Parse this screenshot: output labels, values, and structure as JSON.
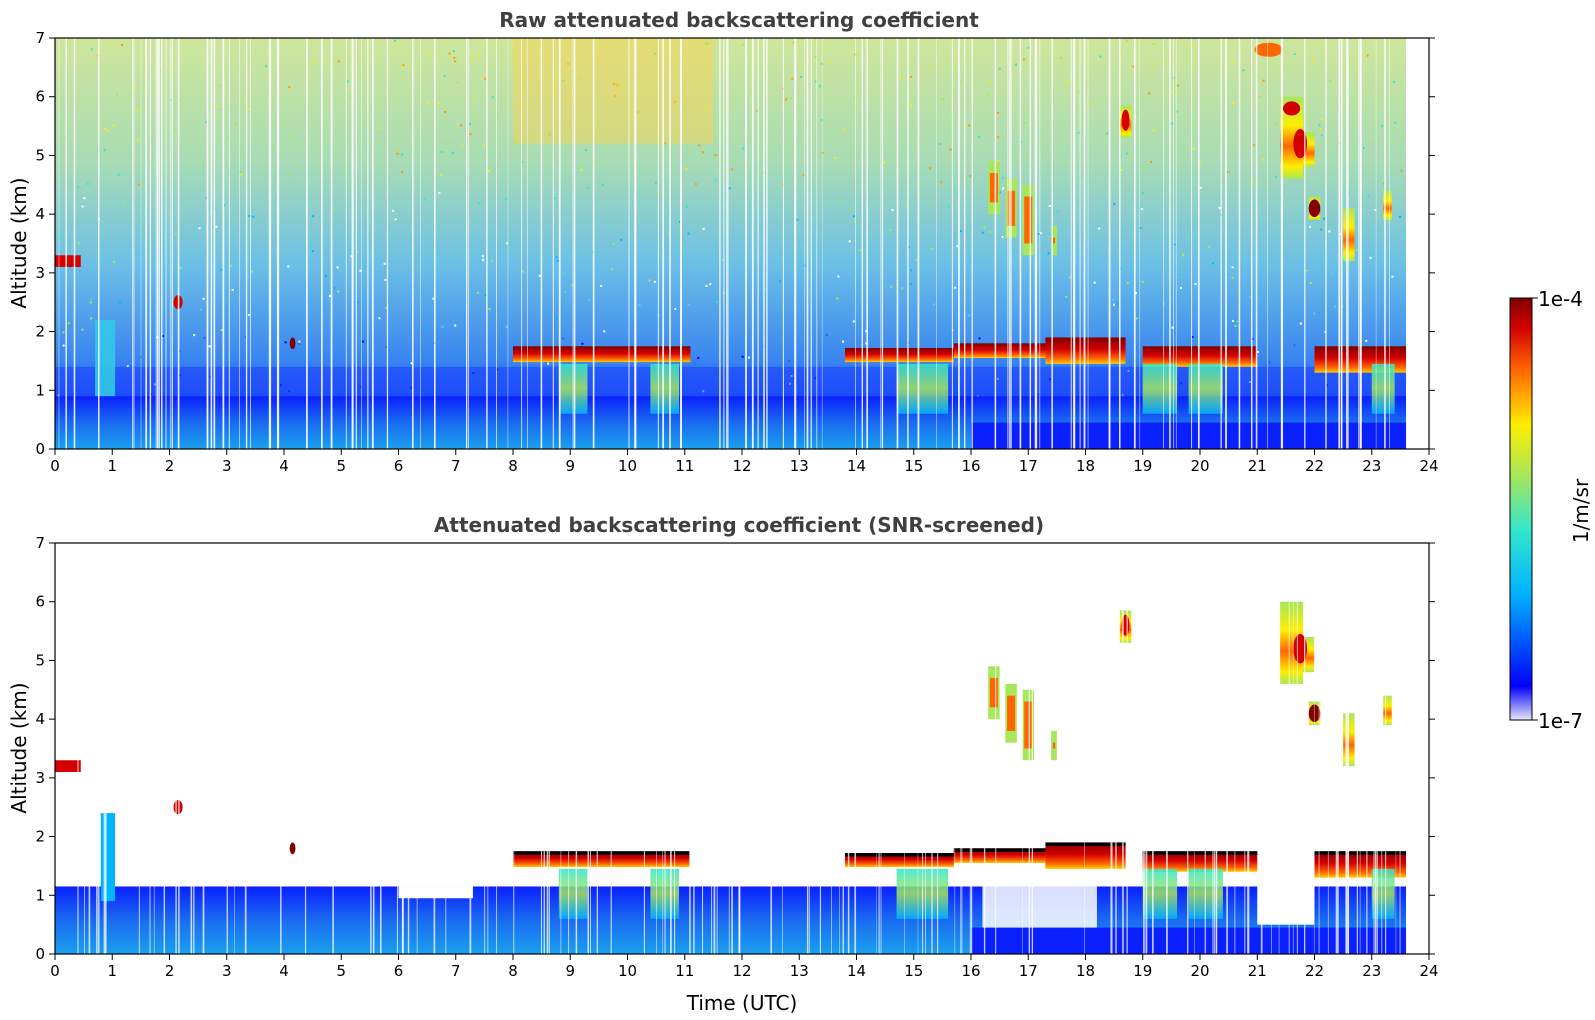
{
  "chart_data": [
    {
      "type": "heatmap",
      "title": "Raw attenuated backscattering coefficient",
      "xlabel": "",
      "ylabel": "Altitude (km)",
      "xlim": [
        0,
        24
      ],
      "ylim": [
        0,
        7
      ],
      "x_ticks": [
        "0",
        "1",
        "2",
        "3",
        "4",
        "5",
        "6",
        "7",
        "8",
        "9",
        "10",
        "11",
        "12",
        "13",
        "14",
        "15",
        "16",
        "17",
        "18",
        "19",
        "20",
        "21",
        "22",
        "23",
        "24"
      ],
      "y_ticks": [
        "0",
        "1",
        "2",
        "3",
        "4",
        "5",
        "6",
        "7"
      ],
      "data_end_time": 23.6,
      "features": [
        {
          "kind": "boundary_layer_aerosol",
          "t_start": 0,
          "t_end": 23.6,
          "alt_top": 0.9
        },
        {
          "kind": "cloud",
          "t_start": 8.0,
          "t_end": 11.1,
          "alt": 1.6
        },
        {
          "kind": "cloud",
          "t_start": 13.8,
          "t_end": 17.3,
          "alt": 1.65
        },
        {
          "kind": "cloud",
          "t_start": 17.3,
          "t_end": 18.7,
          "alt": 1.65
        },
        {
          "kind": "cloud",
          "t_start": 19.0,
          "t_end": 21.0,
          "alt": 1.55
        },
        {
          "kind": "cloud",
          "t_start": 22.0,
          "t_end": 23.6,
          "alt": 1.5
        },
        {
          "kind": "virga",
          "t_start": 16.3,
          "t_end": 17.5,
          "alt_range": [
            3.3,
            4.9
          ]
        },
        {
          "kind": "cirrus",
          "t_start": 21.2,
          "t_end": 23.3,
          "alt_range": [
            3.2,
            6.8
          ]
        },
        {
          "kind": "cloud",
          "t_start": 18.6,
          "t_end": 18.8,
          "alt_range": [
            5.3,
            5.8
          ]
        },
        {
          "kind": "cloud",
          "t_start": 0.0,
          "t_end": 0.4,
          "alt": 3.2
        }
      ]
    },
    {
      "type": "heatmap",
      "title": "Attenuated backscattering coefficient (SNR-screened)",
      "xlabel": "Time (UTC)",
      "ylabel": "Altitude (km)",
      "xlim": [
        0,
        24
      ],
      "ylim": [
        0,
        7
      ],
      "x_ticks": [
        "0",
        "1",
        "2",
        "3",
        "4",
        "5",
        "6",
        "7",
        "8",
        "9",
        "10",
        "11",
        "12",
        "13",
        "14",
        "15",
        "16",
        "17",
        "18",
        "19",
        "20",
        "21",
        "22",
        "23",
        "24"
      ],
      "y_ticks": [
        "0",
        "1",
        "2",
        "3",
        "4",
        "5",
        "6",
        "7"
      ],
      "data_end_time": 23.6
    }
  ],
  "colorbar": {
    "label": "1/m/sr",
    "max_label": "1e-4",
    "min_label": "1e-7",
    "colormap": "jet",
    "colors": [
      "#e6e6f8",
      "#0000ff",
      "#00b4ff",
      "#33e6cc",
      "#a8e65a",
      "#ffee00",
      "#ff6600",
      "#d40000",
      "#800000"
    ]
  }
}
